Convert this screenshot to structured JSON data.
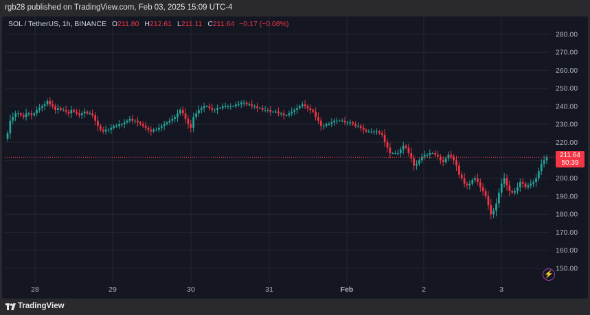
{
  "header": {
    "publisher_text": "rgb28 published on TradingView.com, Feb 03, 2025 15:09 UTC-4"
  },
  "legend": {
    "symbol": "SOL / TetherUS, 1h, BINANCE",
    "open_label": "O",
    "open": "211.80",
    "high_label": "H",
    "high": "212.61",
    "low_label": "L",
    "low": "211.11",
    "close_label": "C",
    "close": "211.64",
    "change": "−0.17 (−0.08%)"
  },
  "last_price": {
    "price": "211.64",
    "countdown": "50:39"
  },
  "footer": {
    "brand": "TradingView",
    "logo_icon": "tradingview-logo-icon"
  },
  "colors": {
    "up": "#26a69a",
    "down": "#f23645",
    "background": "#141722",
    "grid": "#242733"
  },
  "chart_data": {
    "type": "candlestick",
    "symbol": "SOL / TetherUS",
    "interval": "1h",
    "exchange": "BINANCE",
    "ylim": [
      145,
      283
    ],
    "yticks": [
      150,
      160,
      170,
      180,
      190,
      200,
      210,
      220,
      230,
      240,
      250,
      260,
      270,
      280
    ],
    "ytick_labels": [
      "150.00",
      "160.00",
      "170.00",
      "180.00",
      "190.00",
      "200.00",
      "210.00",
      "220.00",
      "230.00",
      "240.00",
      "250.00",
      "260.00",
      "270.00",
      "280.00"
    ],
    "xtick_labels": [
      "28",
      "29",
      "30",
      "31",
      "Feb",
      "2",
      "3"
    ],
    "grid": true,
    "last_price": 211.64,
    "closes": [
      225,
      232,
      234,
      236,
      236,
      235,
      234,
      236,
      236,
      235,
      236,
      238,
      239,
      240,
      241,
      243,
      241,
      240,
      238,
      239,
      238,
      238,
      237,
      236,
      238,
      237,
      236,
      235,
      236,
      237,
      236,
      236,
      235,
      232,
      229,
      227,
      226,
      227,
      227,
      228,
      229,
      229,
      230,
      230,
      231,
      232,
      233,
      232,
      232,
      231,
      230,
      229,
      228,
      227,
      226,
      227,
      227,
      228,
      229,
      230,
      231,
      232,
      233,
      234,
      236,
      238,
      236,
      233,
      230,
      228,
      234,
      236,
      238,
      239,
      240,
      240,
      239,
      238,
      238,
      239,
      239,
      240,
      240,
      240,
      240,
      240,
      241,
      241,
      242,
      242,
      241,
      241,
      240,
      240,
      239,
      239,
      238,
      238,
      238,
      237,
      237,
      237,
      236,
      236,
      235,
      235,
      236,
      237,
      238,
      239,
      240,
      241,
      240,
      239,
      238,
      237,
      234,
      232,
      229,
      229,
      230,
      230,
      231,
      232,
      232,
      232,
      232,
      231,
      231,
      231,
      230,
      229,
      229,
      228,
      227,
      226,
      226,
      226,
      226,
      226,
      225,
      224,
      220,
      217,
      214,
      214,
      214,
      214,
      216,
      218,
      217,
      214,
      211,
      207,
      208,
      210,
      212,
      213,
      213,
      214,
      214,
      213,
      212,
      210,
      209,
      211,
      213,
      212,
      210,
      207,
      202,
      200,
      197,
      196,
      197,
      199,
      200,
      198,
      195,
      193,
      190,
      185,
      180,
      182,
      186,
      192,
      197,
      200,
      196,
      193,
      192,
      193,
      195,
      198,
      197,
      195,
      196,
      197,
      198,
      200,
      204,
      208,
      210,
      211.64
    ]
  }
}
